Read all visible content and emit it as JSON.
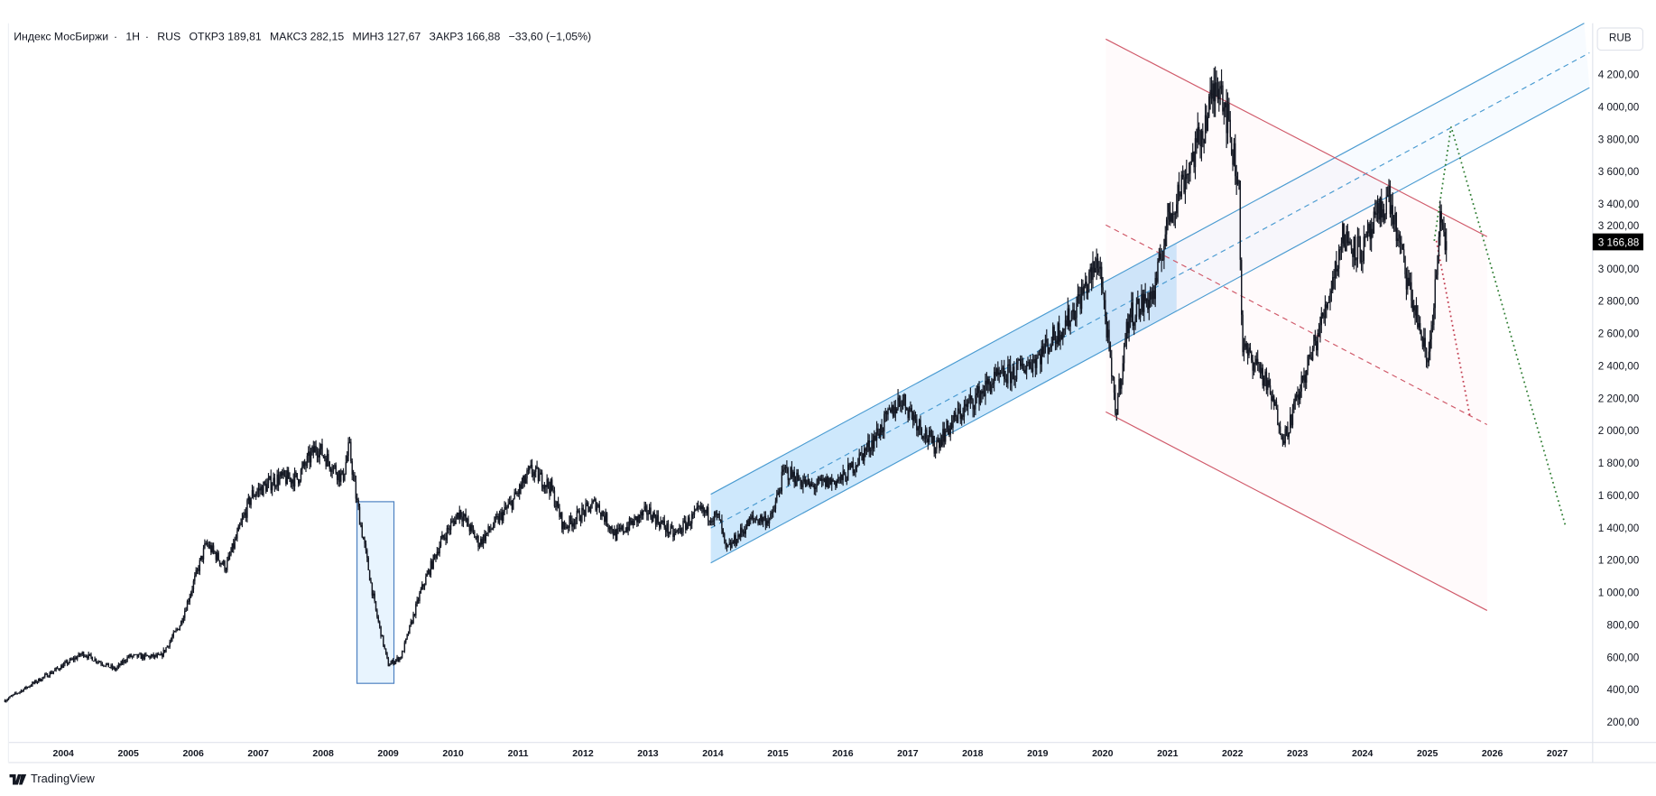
{
  "legend": {
    "symbol": "Индекс МосБиржи",
    "interval": "1Н",
    "exchange": "RUS",
    "open": "ОТКР3 189,81",
    "high": "МАКС3 282,15",
    "low": "МИН3 127,67",
    "close": "ЗАКР3 166,88",
    "change": "−33,60 (−1,05%)"
  },
  "currency_button": "RUB",
  "last_price_label": "3 166,88",
  "brand": "TradingView",
  "colors": {
    "candles": "#131722",
    "channel_blue": "#4a9bd1",
    "pitchfork_red": "#d05a6a",
    "projection_green": "#2e7d32",
    "last_price_bg": "#000000"
  },
  "chart_data": {
    "type": "candlestick",
    "title": "Индекс МосБиржи · 1Н · RUS",
    "ylabel": "RUB",
    "ylim": [
      100,
      4450
    ],
    "xlim": [
      2003.1,
      2028.0
    ],
    "y_ticks": [
      "200,00",
      "400,00",
      "600,00",
      "800,00",
      "1 000,00",
      "1 200,00",
      "1 400,00",
      "1 600,00",
      "1 800,00",
      "2 000,00",
      "2 200,00",
      "2 400,00",
      "2 600,00",
      "2 800,00",
      "3 000,00",
      "3 200,00",
      "3 400,00",
      "3 600,00",
      "3 800,00",
      "4 000,00",
      "4 200,00"
    ],
    "x_ticks": [
      "2004",
      "2005",
      "2006",
      "2007",
      "2008",
      "2009",
      "2010",
      "2011",
      "2012",
      "2013",
      "2014",
      "2015",
      "2016",
      "2017",
      "2018",
      "2019",
      "2020",
      "2021",
      "2022",
      "2023",
      "2024",
      "2025",
      "2026",
      "2027"
    ],
    "price_path": {
      "x": [
        2003.1,
        2003.6,
        2004.3,
        2004.8,
        2005.0,
        2005.5,
        2005.8,
        2006.2,
        2006.5,
        2006.9,
        2007.3,
        2007.6,
        2007.9,
        2008.3,
        2008.4,
        2008.5,
        2008.8,
        2009.0,
        2009.2,
        2009.5,
        2009.8,
        2010.1,
        2010.4,
        2010.9,
        2011.2,
        2011.5,
        2011.7,
        2012.2,
        2012.5,
        2013.0,
        2013.4,
        2013.8,
        2014.1,
        2014.2,
        2014.6,
        2014.9,
        2015.1,
        2015.5,
        2016.0,
        2016.4,
        2016.9,
        2017.4,
        2017.8,
        2018.3,
        2018.6,
        2019.0,
        2019.5,
        2019.95,
        2020.2,
        2020.4,
        2020.8,
        2021.0,
        2021.5,
        2021.8,
        2022.1,
        2022.15,
        2022.4,
        2022.6,
        2022.8,
        2023.0,
        2023.4,
        2023.7,
        2024.0,
        2024.4,
        2024.7,
        2024.9,
        2025.0,
        2025.15,
        2025.2,
        2025.3
      ],
      "close": [
        330,
        450,
        620,
        520,
        600,
        600,
        800,
        1300,
        1150,
        1600,
        1700,
        1700,
        1900,
        1700,
        1900,
        1600,
        900,
        550,
        600,
        1000,
        1300,
        1500,
        1300,
        1550,
        1750,
        1650,
        1400,
        1550,
        1350,
        1500,
        1350,
        1500,
        1450,
        1250,
        1450,
        1450,
        1750,
        1650,
        1700,
        1900,
        2200,
        1900,
        2100,
        2300,
        2350,
        2450,
        2700,
        3050,
        2100,
        2700,
        2850,
        3300,
        3800,
        4200,
        3500,
        2500,
        2400,
        2200,
        1950,
        2200,
        2700,
        3200,
        3100,
        3450,
        2900,
        2600,
        2400,
        3000,
        3300,
        3167
      ]
    },
    "last_price": 3166.88,
    "annotations": [
      "rectangle 2008-2009 drawdown",
      "blue ascending channel 2014-2021 extended",
      "red descending channel 2020-2026",
      "red dotted projection to ~2100",
      "green dotted projection ~3800 to ~1400"
    ]
  }
}
